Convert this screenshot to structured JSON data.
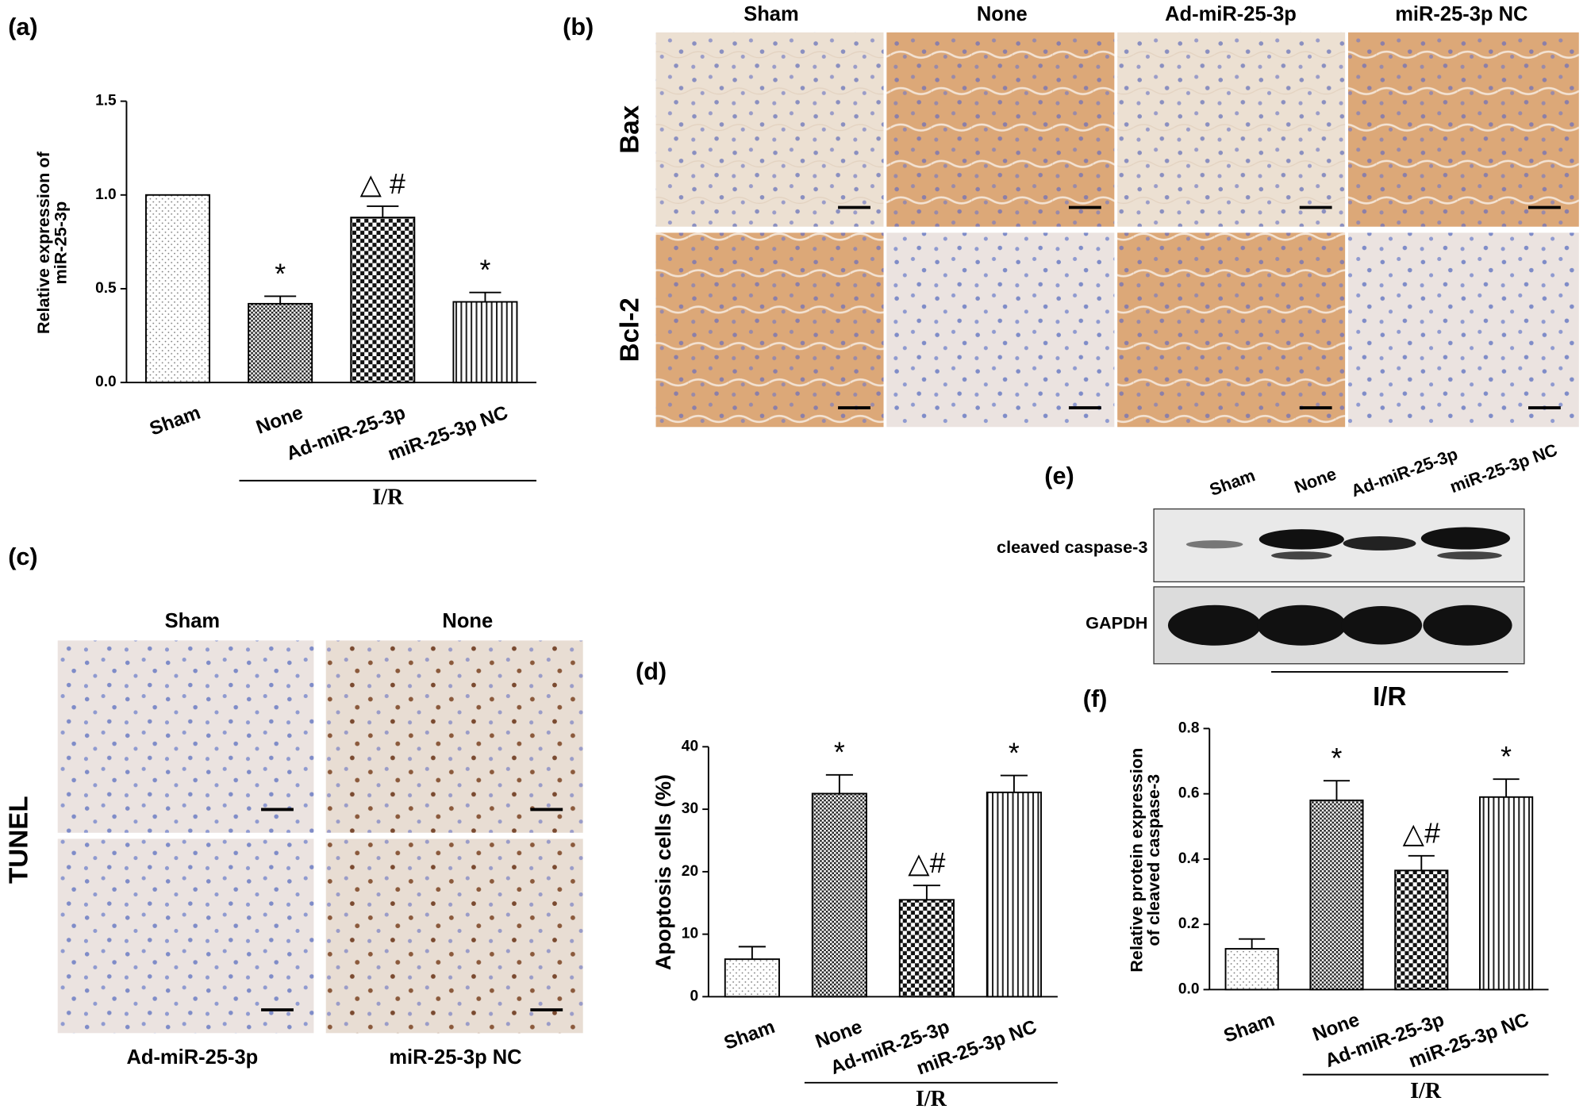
{
  "panel_labels": [
    "(a)",
    "(b)",
    "(c)",
    "(d)",
    "(e)",
    "(f)"
  ],
  "chart_data": [
    {
      "type": "bar",
      "categories": [
        "Sham",
        "None",
        "Ad-miR-25-3p",
        "miR-25-3p NC"
      ],
      "values": [
        1.0,
        0.42,
        0.88,
        0.43
      ],
      "errors": [
        null,
        0.04,
        0.06,
        0.05
      ],
      "annotations": [
        null,
        "*",
        "△ #",
        "*"
      ],
      "patterns": [
        "dots",
        "fine-checker",
        "checker",
        "stripes"
      ],
      "ylabel": [
        "Relative expression of",
        "miR-25-3p"
      ],
      "group_label": "I/R",
      "ylim": [
        0,
        1.5
      ],
      "yticks": [
        {
          "value": 0,
          "label": "0.0"
        },
        0.5,
        {
          "value": 1,
          "label": "1.0"
        },
        1.5
      ]
    },
    {
      "type": "bar",
      "categories": [
        "Sham",
        "None",
        "Ad-miR-25-3p",
        "miR-25-3p NC"
      ],
      "values": [
        6,
        32.5,
        15.5,
        32.7
      ],
      "errors": [
        2,
        3,
        2.3,
        2.7
      ],
      "annotations": [
        null,
        "*",
        "△#",
        "*"
      ],
      "patterns": [
        "dots",
        "fine-checker",
        "checker",
        "stripes"
      ],
      "ylabel": [
        "Apoptosis cells (%)"
      ],
      "group_label": "I/R",
      "ylim": [
        0,
        40
      ],
      "yticks": [
        0,
        10,
        20,
        30,
        40
      ]
    },
    {
      "type": "bar",
      "categories": [
        "Sham",
        "None",
        "Ad-miR-25-3p",
        "miR-25-3p NC"
      ],
      "values": [
        0.125,
        0.58,
        0.365,
        0.59
      ],
      "errors": [
        0.03,
        0.06,
        0.045,
        0.055
      ],
      "annotations": [
        null,
        "*",
        "△#",
        "*"
      ],
      "patterns": [
        "dots",
        "fine-checker",
        "checker",
        "stripes"
      ],
      "ylabel": [
        "Relative protein expression",
        "of cleaved caspase-3"
      ],
      "group_label": "I/R",
      "ylim": [
        0,
        0.8
      ],
      "yticks": [
        {
          "value": 0,
          "label": "0.0"
        },
        0.2,
        0.4,
        0.6,
        0.8
      ]
    }
  ],
  "ihc": {
    "columns": [
      "Sham",
      "None",
      "Ad-miR-25-3p",
      "miR-25-3p NC"
    ],
    "rows": [
      "Bax",
      "Bcl-2"
    ]
  },
  "tunel": {
    "row_label": "TUNEL",
    "top_labels": [
      "Sham",
      "None"
    ],
    "bottom_labels": [
      "Ad-miR-25-3p",
      "miR-25-3p NC"
    ]
  },
  "western_blot": {
    "lanes": [
      "Sham",
      "None",
      "Ad-miR-25-3p",
      "miR-25-3p NC"
    ],
    "bands": [
      "cleaved caspase-3",
      "GAPDH"
    ],
    "group_label": "I/R"
  }
}
